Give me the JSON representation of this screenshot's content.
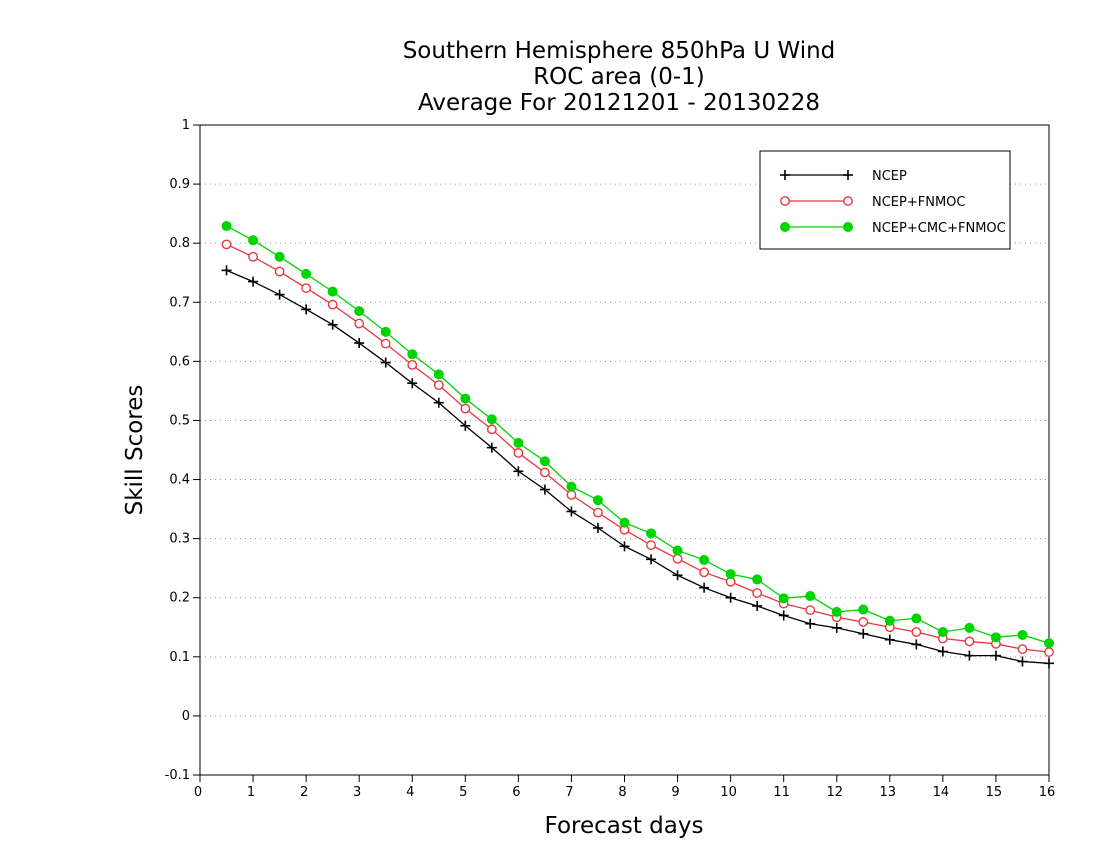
{
  "chart_data": {
    "type": "line",
    "title_lines": [
      "Southern Hemisphere 850hPa U Wind",
      "ROC area (0-1)",
      "Average For 20121201 - 20130228"
    ],
    "xlabel": "Forecast days",
    "ylabel": "Skill Scores",
    "xlim": [
      0,
      16
    ],
    "ylim": [
      -0.1,
      1
    ],
    "xticks": [
      "0",
      "1",
      "2",
      "3",
      "4",
      "5",
      "6",
      "7",
      "8",
      "9",
      "10",
      "11",
      "12",
      "13",
      "14",
      "15",
      "16"
    ],
    "yticks": [
      "-0.1",
      "0",
      "0.1",
      "0.2",
      "0.3",
      "0.4",
      "0.5",
      "0.6",
      "0.7",
      "0.8",
      "0.9",
      "1"
    ],
    "grid": "horizontal dotted",
    "legend_position": "top-right",
    "x": [
      0.5,
      1,
      1.5,
      2,
      2.5,
      3,
      3.5,
      4,
      4.5,
      5,
      5.5,
      6,
      6.5,
      7,
      7.5,
      8,
      8.5,
      9,
      9.5,
      10,
      10.5,
      11,
      11.5,
      12,
      12.5,
      13,
      13.5,
      14,
      14.5,
      15,
      15.5,
      16
    ],
    "series": [
      {
        "name": "NCEP",
        "color": "#000000",
        "marker": "plus",
        "values": [
          0.754,
          0.735,
          0.713,
          0.688,
          0.662,
          0.631,
          0.598,
          0.563,
          0.53,
          0.491,
          0.454,
          0.414,
          0.383,
          0.346,
          0.318,
          0.287,
          0.265,
          0.238,
          0.217,
          0.2,
          0.186,
          0.17,
          0.156,
          0.149,
          0.139,
          0.129,
          0.121,
          0.109,
          0.102,
          0.102,
          0.092,
          0.089
        ]
      },
      {
        "name": "NCEP+FNMOC",
        "color": "#e8383b",
        "marker": "open-circle",
        "values": [
          0.798,
          0.777,
          0.752,
          0.724,
          0.696,
          0.664,
          0.63,
          0.594,
          0.56,
          0.52,
          0.485,
          0.445,
          0.412,
          0.374,
          0.344,
          0.315,
          0.289,
          0.266,
          0.243,
          0.227,
          0.208,
          0.19,
          0.179,
          0.167,
          0.159,
          0.15,
          0.142,
          0.131,
          0.126,
          0.122,
          0.113,
          0.108
        ]
      },
      {
        "name": "NCEP+CMC+FNMOC",
        "color": "#00d400",
        "marker": "filled-circle",
        "values": [
          0.829,
          0.805,
          0.777,
          0.748,
          0.718,
          0.685,
          0.65,
          0.612,
          0.578,
          0.537,
          0.502,
          0.462,
          0.431,
          0.388,
          0.365,
          0.327,
          0.309,
          0.28,
          0.264,
          0.24,
          0.231,
          0.199,
          0.203,
          0.176,
          0.18,
          0.161,
          0.165,
          0.142,
          0.149,
          0.133,
          0.137,
          0.123
        ]
      }
    ]
  }
}
